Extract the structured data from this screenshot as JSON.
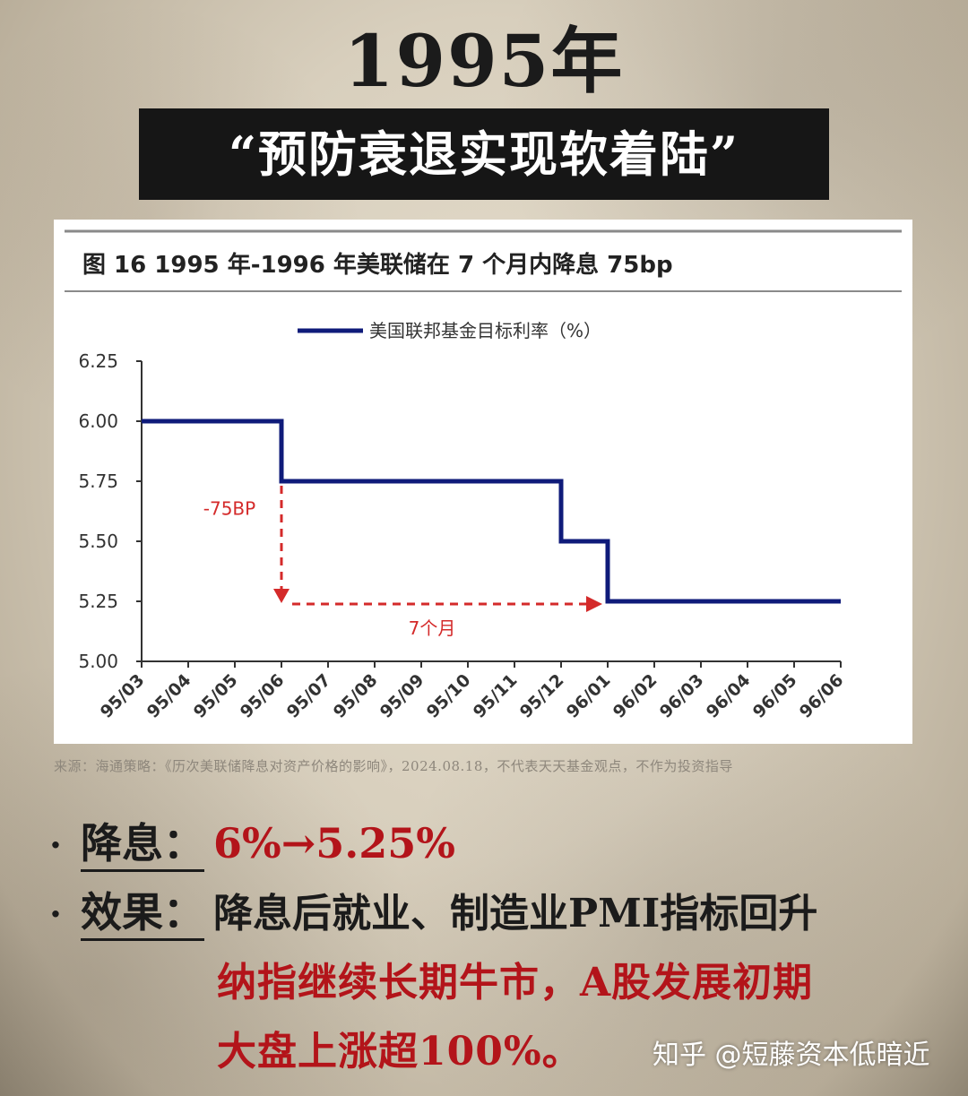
{
  "poster": {
    "title": "1995年",
    "subtitle": "“预防衰退实现软着陆”"
  },
  "figure": {
    "title": "图 16   1995 年-1996 年美联储在 7 个月内降息 75bp",
    "source": "来源：海通策略：《历次美联储降息对资产价格的影响》，2024.08.18，不代表天天基金观点，不作为投资指导"
  },
  "chart_data": {
    "type": "line",
    "step": true,
    "series": [
      {
        "name": "美国联邦基金目标利率（%）",
        "color": "#0f1b7a",
        "points": [
          {
            "x": "95/03",
            "y": 6.0
          },
          {
            "x": "95/06",
            "y": 6.0
          },
          {
            "x": "95/06",
            "y": 5.75
          },
          {
            "x": "95/12",
            "y": 5.75
          },
          {
            "x": "95/12",
            "y": 5.5
          },
          {
            "x": "96/01",
            "y": 5.5
          },
          {
            "x": "96/01",
            "y": 5.25
          },
          {
            "x": "96/06",
            "y": 5.25
          }
        ]
      }
    ],
    "x_categories": [
      "95/03",
      "95/04",
      "95/05",
      "95/06",
      "95/07",
      "95/08",
      "95/09",
      "95/10",
      "95/11",
      "95/12",
      "96/01",
      "96/02",
      "96/03",
      "96/04",
      "96/05",
      "96/06"
    ],
    "y_ticks": [
      "6.25",
      "6.00",
      "5.75",
      "5.50",
      "5.25",
      "5.00"
    ],
    "ylim": [
      5.0,
      6.25
    ],
    "legend_position": "top-center",
    "annotations": [
      {
        "text": "-75BP",
        "color": "#d42a2a"
      },
      {
        "text": "7个月",
        "color": "#d42a2a"
      }
    ]
  },
  "bullets": [
    {
      "key": "降息：",
      "value": "6%→5.25%"
    },
    {
      "key": "效果：",
      "value": "降息后就业、制造业PMI指标回升"
    }
  ],
  "continuation": [
    "纳指继续长期牛市，A股发展初期",
    "大盘上涨超100%。"
  ],
  "watermark": "知乎 @短藤资本低暗近",
  "colors": {
    "accent_red": "#b3141a",
    "series_blue": "#0f1b7a",
    "annotation_red": "#d42a2a"
  }
}
